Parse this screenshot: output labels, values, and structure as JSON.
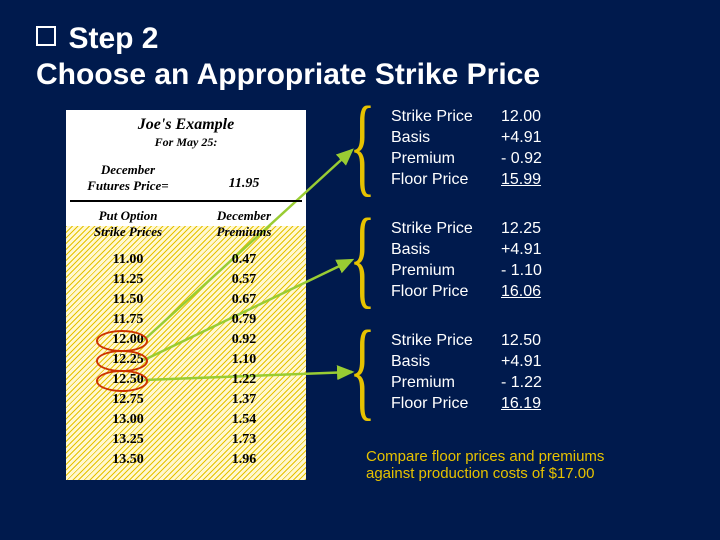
{
  "title": {
    "bullet": "❑",
    "line1": "Step 2",
    "line2": "Choose an Appropriate Strike Price"
  },
  "table": {
    "heading": "Joe's Example",
    "subheading": "For May 25:",
    "futures_label1": "December",
    "futures_label2": "Futures Price=",
    "futures_value": "11.95",
    "col1_a": "Put Option",
    "col1_b": "Strike Prices",
    "col2_a": "December",
    "col2_b": "Premiums",
    "rows": [
      {
        "strike": "11.00",
        "prem": "0.47"
      },
      {
        "strike": "11.25",
        "prem": "0.57"
      },
      {
        "strike": "11.50",
        "prem": "0.67"
      },
      {
        "strike": "11.75",
        "prem": "0.79"
      },
      {
        "strike": "12.00",
        "prem": "0.92"
      },
      {
        "strike": "12.25",
        "prem": "1.10"
      },
      {
        "strike": "12.50",
        "prem": "1.22"
      },
      {
        "strike": "12.75",
        "prem": "1.37"
      },
      {
        "strike": "13.00",
        "prem": "1.54"
      },
      {
        "strike": "13.25",
        "prem": "1.73"
      },
      {
        "strike": "13.50",
        "prem": "1.96"
      }
    ],
    "highlight_idx": [
      4,
      5,
      6
    ]
  },
  "calcs": [
    {
      "labels": [
        "Strike Price",
        "Basis",
        "Premium",
        "Floor Price"
      ],
      "vals": [
        "12.00",
        "+4.91",
        "- 0.92",
        "15.99"
      ]
    },
    {
      "labels": [
        "Strike Price",
        "Basis",
        "Premium",
        "Floor Price"
      ],
      "vals": [
        "12.25",
        "+4.91",
        "- 1.10",
        "16.06"
      ]
    },
    {
      "labels": [
        "Strike Price",
        "Basis",
        "Premium",
        "Floor Price"
      ],
      "vals": [
        "12.50",
        "+4.91",
        "- 1.22",
        "16.19"
      ]
    }
  ],
  "foot1": "Compare floor prices and premiums",
  "foot2": "against production costs of $17.00",
  "colors": {
    "bg": "#001a4d",
    "accent": "#e6c200",
    "hl": "#cc3300",
    "arrow": "#99cc33"
  }
}
